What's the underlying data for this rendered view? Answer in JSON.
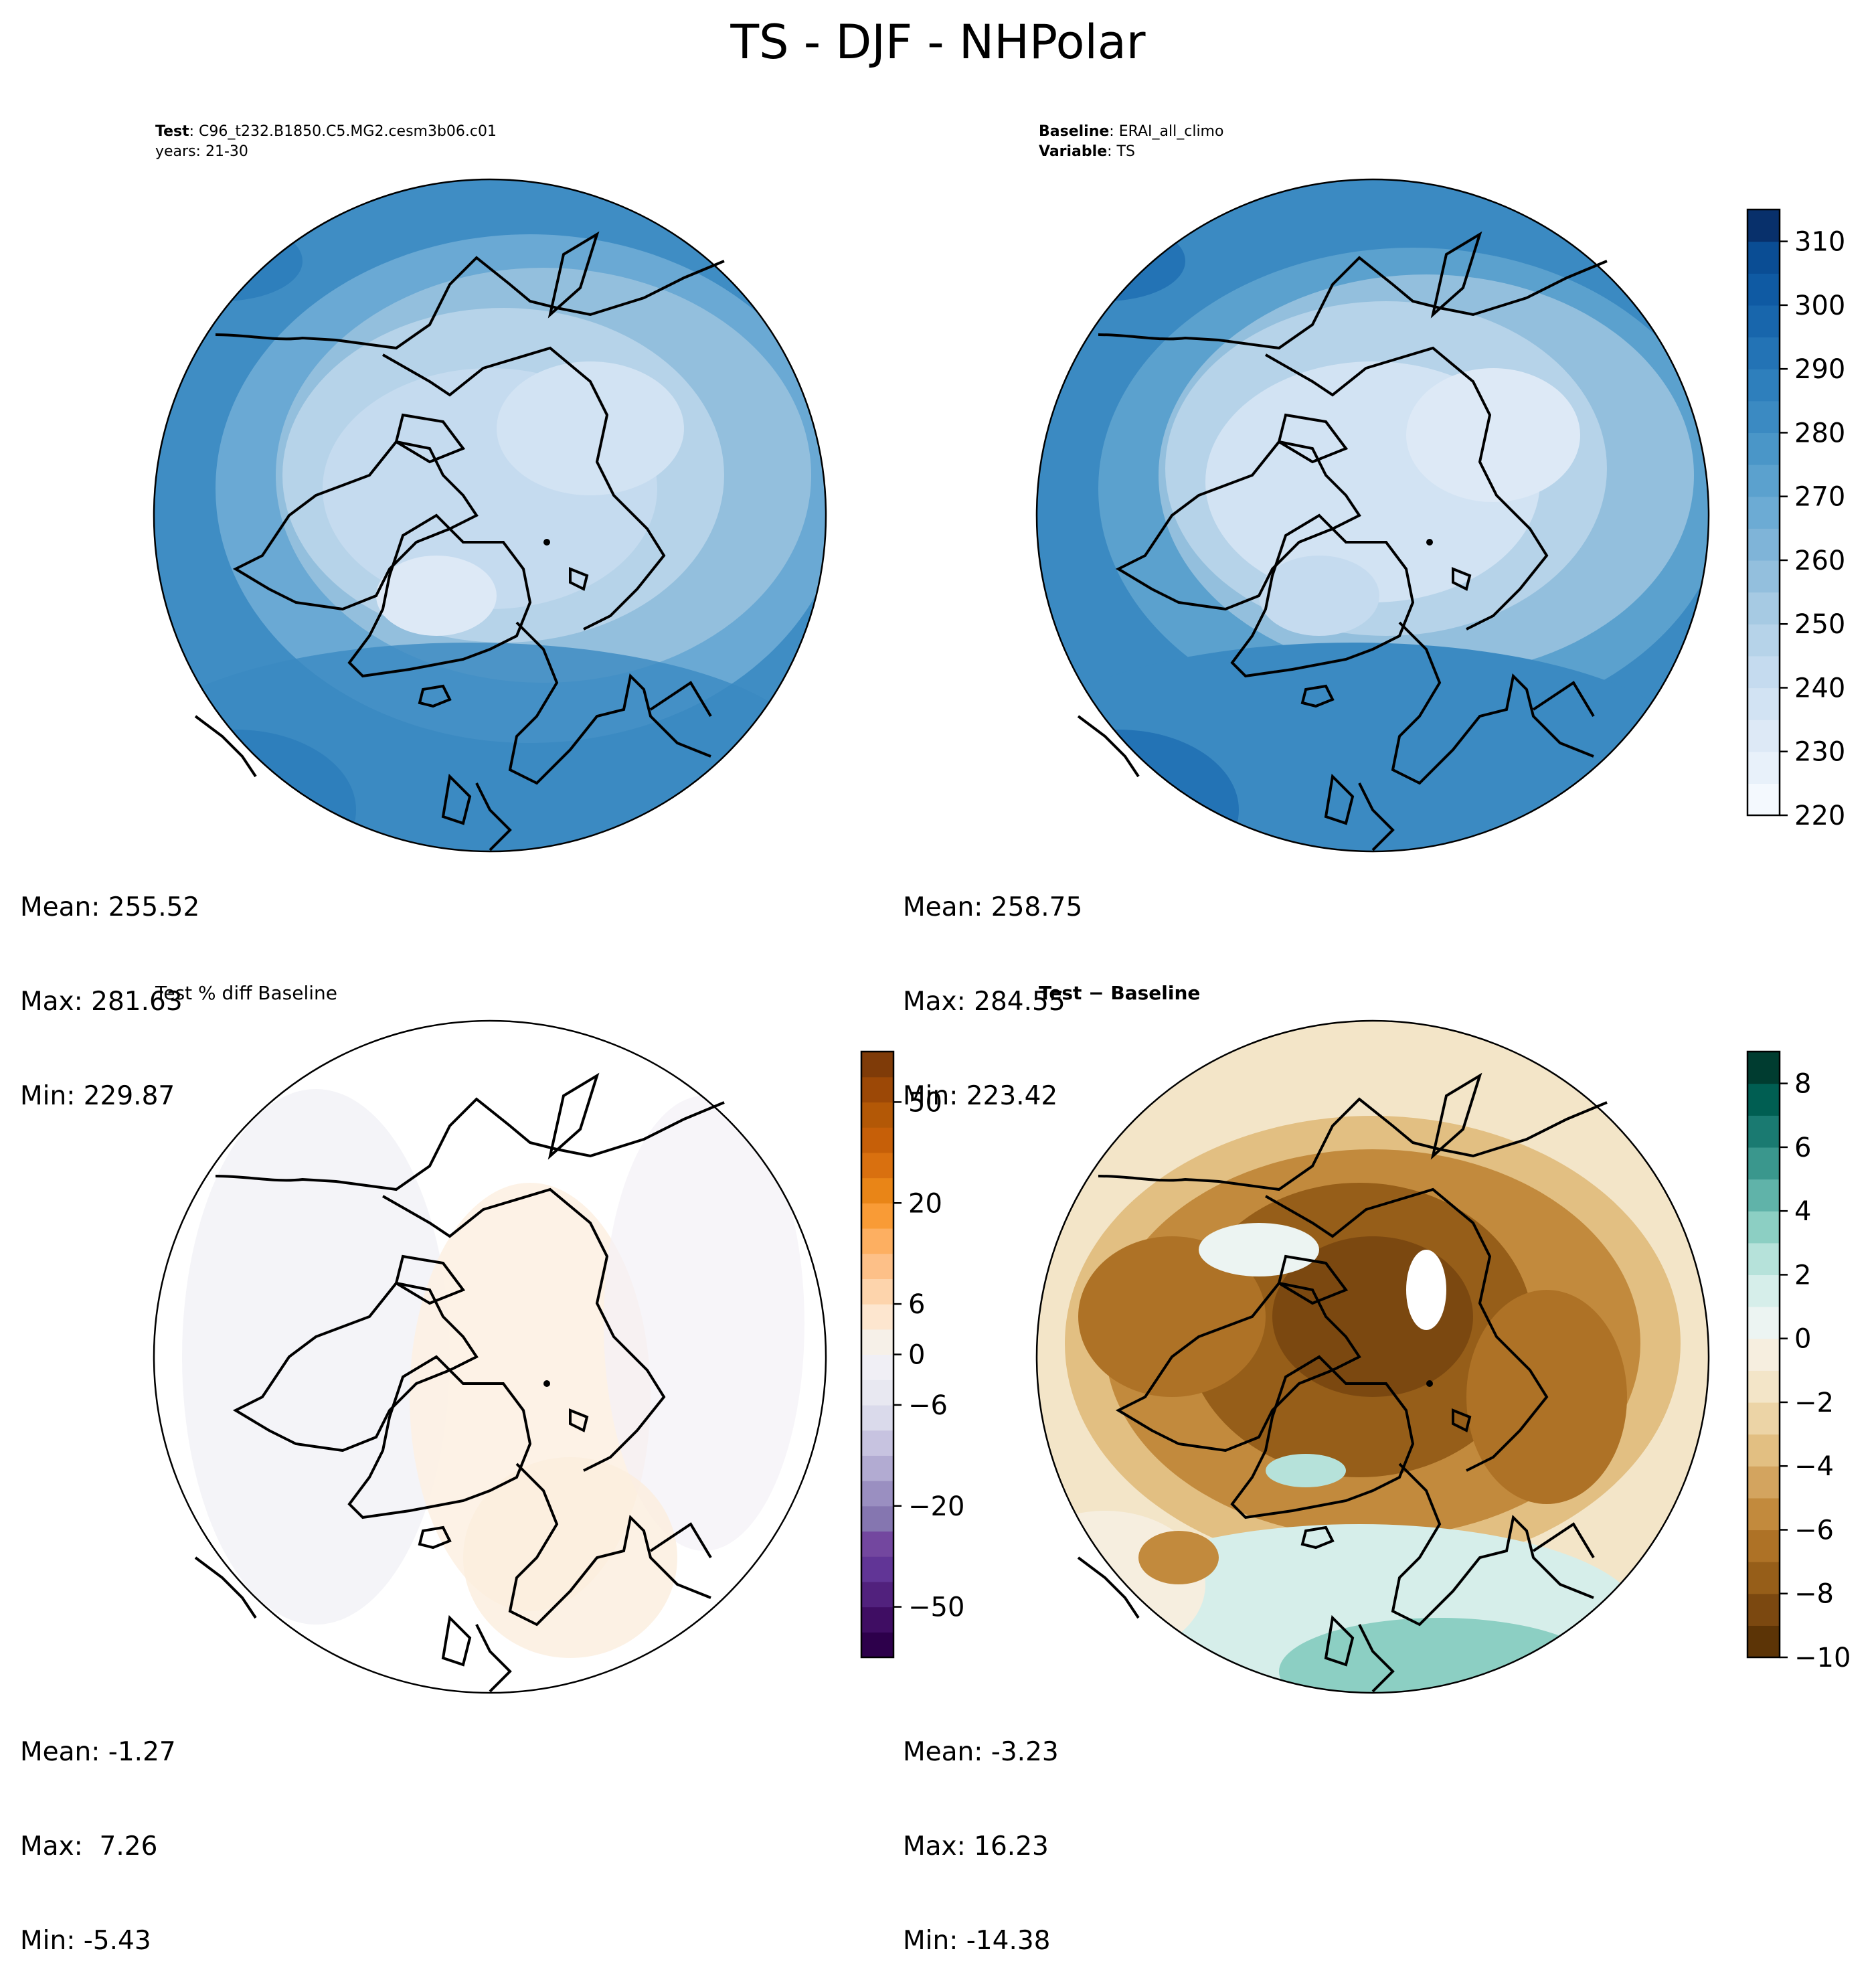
{
  "figure": {
    "title": "TS - DJF - NHPolar"
  },
  "panels": {
    "test": {
      "header_bold": "Test",
      "header_text": ": C96_t232.B1850.C5.MG2.cesm3b06.c01",
      "header_line2": "years: 21-30",
      "mean": "Mean: 255.52",
      "max": "Max: 281.63",
      "min": "Min: 229.87"
    },
    "baseline": {
      "header_bold": "Baseline",
      "header_text": ": ERAI_all_climo",
      "header2_bold": "Variable",
      "header2_text": ": TS",
      "mean": "Mean: 258.75",
      "max": "Max: 284.55",
      "min": "Min: 223.42"
    },
    "pctdiff": {
      "title": "Test % diff Baseline",
      "mean": "Mean: -1.27",
      "max": "Max:  7.26",
      "min": "Min: -5.43"
    },
    "diff": {
      "title_a": "Test",
      "title_sep": " − ",
      "title_b": "Baseline",
      "mean": "Mean: -3.23",
      "max": "Max: 16.23",
      "min": "Min: -14.38"
    }
  },
  "chart_data": [
    {
      "type": "heatmap",
      "name": "test",
      "projection": "north-polar-stereographic",
      "field": "TS",
      "stats": {
        "mean": 255.52,
        "max": 281.63,
        "min": 229.87
      },
      "colormap": "Blues",
      "colorbar_shared_with": "baseline"
    },
    {
      "type": "heatmap",
      "name": "baseline",
      "projection": "north-polar-stereographic",
      "field": "TS",
      "stats": {
        "mean": 258.75,
        "max": 284.55,
        "min": 223.42
      },
      "colormap": "Blues",
      "colorbar": {
        "range": [
          220,
          315
        ],
        "levels": 19,
        "ticks": [
          220,
          230,
          240,
          250,
          260,
          270,
          280,
          290,
          300,
          310
        ],
        "tick_labels": [
          "220",
          "230",
          "240",
          "250",
          "260",
          "270",
          "280",
          "290",
          "300",
          "310"
        ],
        "colors": [
          "#f4f9fe",
          "#e8f1fa",
          "#dde9f6",
          "#d2e3f3",
          "#c5dbef",
          "#b6d3e9",
          "#a6cae3",
          "#93bfdd",
          "#7fb4d8",
          "#6cabd4",
          "#5ba1ce",
          "#4a96c8",
          "#3b8ac2",
          "#2e7fbc",
          "#2373b5",
          "#1866ac",
          "#0f5aa3",
          "#0a4d94",
          "#08306b"
        ]
      }
    },
    {
      "type": "heatmap",
      "name": "pctdiff",
      "projection": "north-polar-stereographic",
      "stats": {
        "mean": -1.27,
        "max": 7.26,
        "min": -5.43
      },
      "colormap": "PuOr_r",
      "colorbar": {
        "ticks": [
          -50,
          -20,
          -6,
          0,
          6,
          20,
          50
        ],
        "tick_labels": [
          "−50",
          "−20",
          "−6",
          "0",
          "6",
          "20",
          "50"
        ],
        "colors": [
          "#2d004b",
          "#3f0d63",
          "#51217d",
          "#613596",
          "#73479f",
          "#8576b0",
          "#9a8fc1",
          "#b2abd2",
          "#c7c3e0",
          "#dadaeb",
          "#e8e8f1",
          "#f0eff5",
          "#f6f0e8",
          "#fde6cf",
          "#fdd4ac",
          "#fdc088",
          "#fdaf61",
          "#f99b36",
          "#e98517",
          "#d9700f",
          "#c65f08",
          "#b35806",
          "#9c4806",
          "#7f3b08"
        ]
      }
    },
    {
      "type": "heatmap",
      "name": "diff",
      "projection": "north-polar-stereographic",
      "stats": {
        "mean": -3.23,
        "max": 16.23,
        "min": -14.38
      },
      "colormap": "BrBG",
      "colorbar": {
        "range": [
          -10,
          9
        ],
        "ticks": [
          -10,
          -8,
          -6,
          -4,
          -2,
          0,
          2,
          4,
          6,
          8
        ],
        "tick_labels": [
          "−10",
          "−8",
          "−6",
          "−4",
          "−2",
          "0",
          "2",
          "4",
          "6",
          "8"
        ],
        "colors": [
          "#5c3406",
          "#7b4810",
          "#965e19",
          "#ae7226",
          "#c28a3d",
          "#d3a45f",
          "#e2bf82",
          "#ecd4a6",
          "#f3e5c8",
          "#f6eedf",
          "#ecf4f2",
          "#d6eeea",
          "#b6e2da",
          "#8ccfc3",
          "#60b3a9",
          "#3a978d",
          "#1a7a71",
          "#005e52",
          "#003c30"
        ]
      }
    }
  ]
}
